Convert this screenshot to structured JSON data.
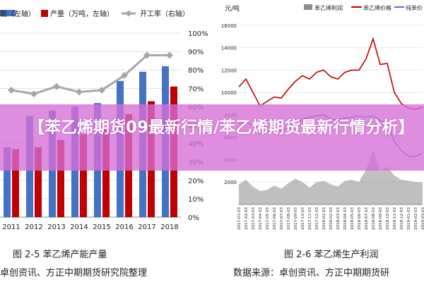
{
  "overlay": {
    "title": "【苯乙烯期货09最新行情/苯乙烯期货最新行情分析】"
  },
  "left": {
    "caption": "图 2-5  苯乙烯产能产量",
    "source": "卓创资讯、方正中期期货研究院整理",
    "legend": [
      "能（左轴）",
      "产量（万吨，左轴）",
      "开工率（右轴）"
    ],
    "colors": {
      "capacity": "#4472c4",
      "output": "#c00000",
      "rate": "#a6a6a6"
    }
  },
  "right": {
    "caption": "图 2-6  苯乙烯生产利润",
    "source": "数据来源：卓创资讯、方正中期期货研",
    "unit": "元/吨",
    "legend": [
      "苯乙烯利润",
      "苯乙烯价格",
      "纯苯价"
    ],
    "colors": {
      "profit": "#8c8c8c",
      "price": "#c00000",
      "benzene": "#4472c4"
    }
  },
  "chart_data": [
    {
      "type": "bar",
      "categories": [
        "2011",
        "2012",
        "2013",
        "2014",
        "2015",
        "2016",
        "2017",
        "2018"
      ],
      "series": [
        {
          "name": "能（左轴）",
          "values": [
            null,
            null,
            null,
            null,
            null,
            null,
            null,
            null
          ]
        },
        {
          "name": "产量（万吨，左轴）",
          "values": [
            null,
            null,
            null,
            null,
            null,
            null,
            null,
            null
          ]
        },
        {
          "name": "开工率（右轴）",
          "values": [
            69,
            67,
            71,
            68,
            69,
            77,
            88,
            88
          ]
        }
      ],
      "y2_ticks": [
        "0%",
        "10%",
        "20%",
        "30%",
        "40%",
        "50%",
        "60%",
        "70%",
        "80%",
        "90%",
        "100%"
      ],
      "y2lim": [
        0,
        100
      ],
      "bar_heights_relative": {
        "capacity": [
          0.38,
          0.55,
          0.58,
          0.6,
          0.62,
          0.74,
          0.79,
          0.82
        ],
        "output": [
          0.37,
          0.38,
          0.42,
          0.45,
          0.48,
          0.56,
          0.63,
          0.71
        ]
      },
      "legend_position": "top"
    },
    {
      "type": "line",
      "unit": "元/吨",
      "y_ticks": [
        2000,
        4000,
        6000,
        8000,
        10000,
        12000,
        14000,
        16000
      ],
      "ylim": [
        0,
        17000
      ],
      "x_ticks": [
        "2017-01-03",
        "2017-02-03",
        "2017-03-03",
        "2017-04-03",
        "2017-05-03",
        "2017-06-03",
        "2017-07-03",
        "2017-08-03",
        "2017-09-03",
        "2017-10-03",
        "2017-11-03",
        "2017-12-03",
        "2018-01-03",
        "2018-02-03",
        "2018-03-03",
        "2018-04-03",
        "2018-05-03",
        "2018-06-03",
        "2018-07-03",
        "2018-08-03",
        "2018-09-03",
        "2018-10-03",
        "2018-11-03",
        "2018-12-03",
        "2019-01-03",
        "2019-02-03",
        "2019-03-03"
      ],
      "series": [
        {
          "name": "苯乙烯价格",
          "values": [
            10500,
            11200,
            10000,
            8800,
            9200,
            9600,
            9500,
            10300,
            11000,
            11500,
            11200,
            11800,
            12000,
            11400,
            11200,
            11800,
            12000,
            12000,
            13000,
            14800,
            12500,
            12600,
            10000,
            9000,
            8600,
            8500,
            8700
          ]
        },
        {
          "name": "纯苯价",
          "values": [
            7200,
            7400,
            7000,
            6300,
            6600,
            6500,
            6600,
            6800,
            7000,
            7600,
            7800,
            7900,
            8000,
            7600,
            7600,
            7700,
            7800,
            7900,
            7800,
            7900,
            7500,
            7200,
            5600,
            4800,
            4300,
            4300,
            4600
          ]
        },
        {
          "name": "苯乙烯利润",
          "values": [
            1800,
            2200,
            1600,
            1200,
            1300,
            1700,
            1400,
            1900,
            2300,
            2000,
            1500,
            2000,
            2100,
            1800,
            1600,
            2100,
            2200,
            2000,
            3100,
            4900,
            3000,
            3400,
            2600,
            2200,
            2100,
            2000,
            2000
          ]
        }
      ],
      "legend_position": "top"
    }
  ]
}
